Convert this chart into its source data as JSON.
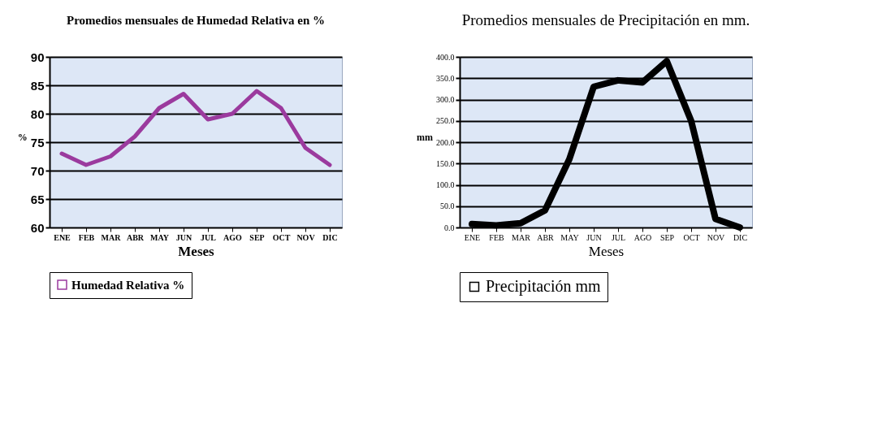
{
  "chart_data": [
    {
      "type": "line",
      "title": "Promedios mensuales de Humedad Relativa en %",
      "xlabel": "Meses",
      "ylabel": "%",
      "categories": [
        "ENE",
        "FEB",
        "MAR",
        "ABR",
        "MAY",
        "JUN",
        "JUL",
        "AGO",
        "SEP",
        "OCT",
        "NOV",
        "DIC"
      ],
      "series": [
        {
          "name": "Humedad Relativa %",
          "color": "#9b3a9e",
          "values": [
            73,
            71,
            72.5,
            76,
            81,
            83.5,
            79,
            80,
            84,
            81,
            74,
            71
          ]
        }
      ],
      "ylim": [
        60,
        90
      ],
      "yticks": [
        60,
        65,
        70,
        75,
        80,
        85,
        90
      ],
      "grid": "y",
      "legend": "bottom left",
      "marker": "none",
      "line_style": "solid"
    },
    {
      "type": "line",
      "title": "Promedios mensuales de Precipitación en mm.",
      "xlabel": "Meses",
      "ylabel": "mm",
      "categories": [
        "ENE",
        "FEB",
        "MAR",
        "ABR",
        "MAY",
        "JUN",
        "JUL",
        "AGO",
        "SEP",
        "OCT",
        "NOV",
        "DIC"
      ],
      "series": [
        {
          "name": "Precipitación mm",
          "color": "#000000",
          "values": [
            8,
            5,
            10,
            40,
            160,
            330,
            345,
            340,
            390,
            250,
            20,
            0
          ]
        }
      ],
      "ylim": [
        0,
        400
      ],
      "yticks": [
        {
          "value": 0,
          "label": "0.0"
        },
        {
          "value": 50,
          "label": "50.0"
        },
        {
          "value": 100,
          "label": "100.0"
        },
        {
          "value": 150,
          "label": "150.0"
        },
        {
          "value": 200,
          "label": "200.0"
        },
        {
          "value": 250,
          "label": "250.0"
        },
        {
          "value": 300,
          "label": "300.0"
        },
        {
          "value": 350,
          "label": "350.0"
        },
        {
          "value": 400,
          "label": "400.0"
        }
      ],
      "grid": "y",
      "legend": "bottom",
      "marker": "none",
      "line_style": "solid"
    }
  ]
}
